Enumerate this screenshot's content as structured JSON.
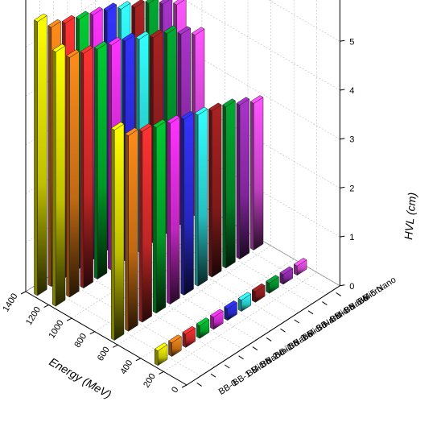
{
  "chart_data": {
    "type": "bar3d",
    "xlabel": "Energy (MeV)",
    "zlabel": "HVL (cm)",
    "x": [
      0.284,
      0.662,
      1.173,
      1.332
    ],
    "xlim": [
      0,
      1400
    ],
    "zlim": [
      0,
      6
    ],
    "x_ticks": [
      "0",
      "200",
      "400",
      "600",
      "800",
      "1000",
      "1200",
      "1400"
    ],
    "z_ticks": [
      "0",
      "1",
      "2",
      "3",
      "4",
      "5"
    ],
    "categories": [
      "BB-0",
      "BB-1 Micro",
      "BB-1 Nano",
      "BB-2 micro",
      "BB-2 Nano",
      "BB-3 Micro",
      "BB- 3 Nano",
      "BB-4 Micro",
      "BB-4 Nano",
      "BB-5 Micro",
      "BB-5 Nano"
    ],
    "colors": [
      "#ffff00",
      "#ff8c1a",
      "#ff3333",
      "#00cc33",
      "#ff33ff",
      "#3333ff",
      "#33ffff",
      "#aa2222",
      "#00aa33",
      "#aa33cc",
      "#ff55ff"
    ],
    "series": [
      {
        "values": [
          0.3,
          0.28,
          0.27,
          0.26,
          0.25,
          0.24,
          0.23,
          0.22,
          0.21,
          0.2,
          0.19
        ]
      },
      {
        "values": [
          4.3,
          4.0,
          3.9,
          3.8,
          3.7,
          3.6,
          3.5,
          3.4,
          3.3,
          3.15,
          3.0
        ]
      },
      {
        "values": [
          5.2,
          4.9,
          4.8,
          4.7,
          4.6,
          4.5,
          4.35,
          4.2,
          4.1,
          3.9,
          3.7
        ]
      },
      {
        "values": [
          5.6,
          5.3,
          5.2,
          5.1,
          5.0,
          4.9,
          4.75,
          4.6,
          4.5,
          4.3,
          4.1
        ]
      }
    ]
  }
}
